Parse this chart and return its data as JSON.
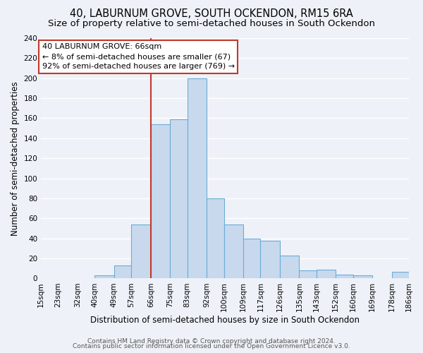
{
  "title": "40, LABURNUM GROVE, SOUTH OCKENDON, RM15 6RA",
  "subtitle": "Size of property relative to semi-detached houses in South Ockendon",
  "xlabel": "Distribution of semi-detached houses by size in South Ockendon",
  "ylabel": "Number of semi-detached properties",
  "bin_edges": [
    15,
    23,
    32,
    40,
    49,
    57,
    66,
    75,
    83,
    92,
    100,
    109,
    117,
    126,
    135,
    143,
    152,
    160,
    169,
    178,
    186
  ],
  "bin_labels": [
    "15sqm",
    "23sqm",
    "32sqm",
    "40sqm",
    "49sqm",
    "57sqm",
    "66sqm",
    "75sqm",
    "83sqm",
    "92sqm",
    "100sqm",
    "109sqm",
    "117sqm",
    "126sqm",
    "135sqm",
    "143sqm",
    "152sqm",
    "160sqm",
    "169sqm",
    "178sqm",
    "186sqm"
  ],
  "counts": [
    0,
    0,
    0,
    3,
    13,
    54,
    154,
    159,
    200,
    80,
    54,
    40,
    38,
    23,
    8,
    9,
    4,
    3,
    0,
    7
  ],
  "bar_color": "#c8d9ee",
  "bar_edge_color": "#6aacd6",
  "property_value": 66,
  "red_line_color": "#c0392b",
  "annotation_line1": "40 LABURNUM GROVE: 66sqm",
  "annotation_line2": "← 8% of semi-detached houses are smaller (67)",
  "annotation_line3": "92% of semi-detached houses are larger (769) →",
  "annotation_box_color": "#ffffff",
  "annotation_box_edge_color": "#c0392b",
  "ylim": [
    0,
    240
  ],
  "yticks": [
    0,
    20,
    40,
    60,
    80,
    100,
    120,
    140,
    160,
    180,
    200,
    220,
    240
  ],
  "footer_line1": "Contains HM Land Registry data © Crown copyright and database right 2024.",
  "footer_line2": "Contains public sector information licensed under the Open Government Licence v3.0.",
  "bg_color": "#eef2f8",
  "grid_color": "#ffffff",
  "title_fontsize": 10.5,
  "subtitle_fontsize": 9.5,
  "axis_label_fontsize": 8.5,
  "tick_fontsize": 7.5,
  "annotation_fontsize": 8,
  "footer_fontsize": 6.5
}
